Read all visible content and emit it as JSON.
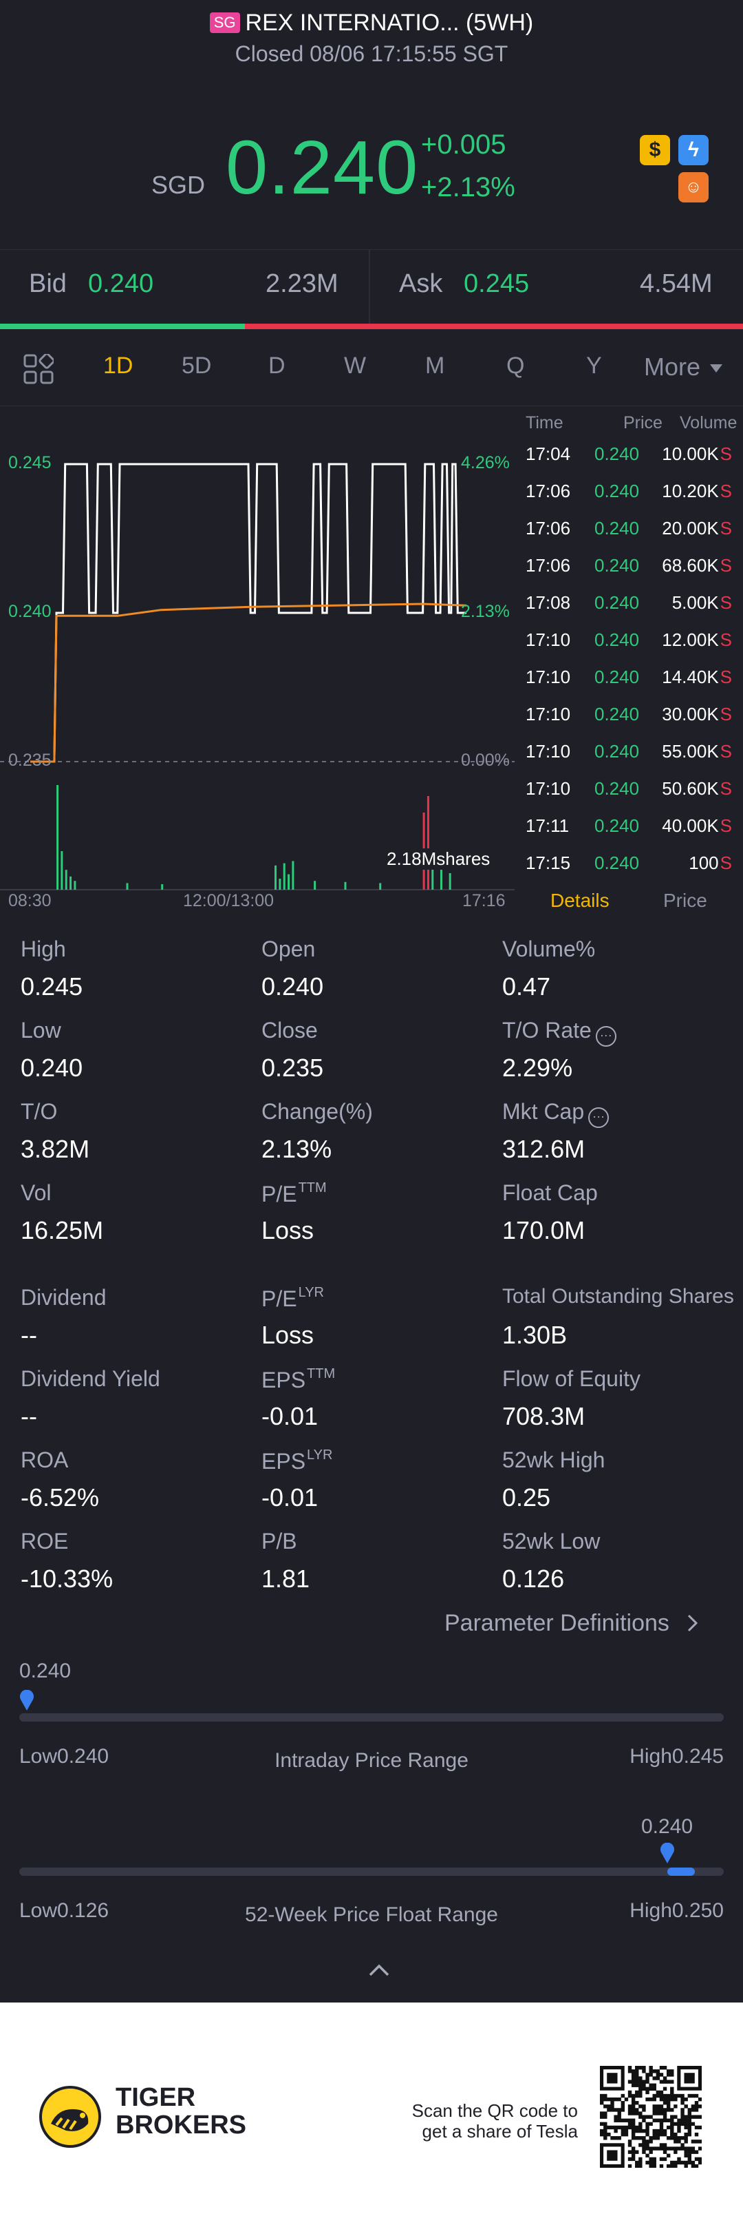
{
  "header": {
    "market_badge": "SG",
    "title": "REX INTERNATIO... (5WH)",
    "status": "Closed 08/06 17:15:55 SGT",
    "currency": "SGD",
    "price": "0.240",
    "change": "+0.005",
    "change_pct": "+2.13%",
    "icons": [
      "dollar-icon",
      "lightning-icon",
      "tiger-icon"
    ]
  },
  "bidask": {
    "bid_label": "Bid",
    "bid_price": "0.240",
    "bid_size": "2.23M",
    "ask_label": "Ask",
    "ask_price": "0.245",
    "ask_size": "4.54M"
  },
  "tabs": {
    "items": [
      "1D",
      "5D",
      "D",
      "W",
      "M",
      "Q",
      "Y",
      "More"
    ],
    "active": "1D"
  },
  "chart_data": {
    "type": "line",
    "title": "",
    "xlabel": "",
    "ylabel": "",
    "x_ticks": [
      "08:30",
      "12:00/13:00",
      "17:16"
    ],
    "y_ticks_left": [
      "0.245",
      "0.240",
      "0.235"
    ],
    "y_ticks_right": [
      "4.26%",
      "2.13%",
      "0.00%"
    ],
    "ylim": [
      0.235,
      0.245
    ],
    "prev_close": 0.235,
    "volume_label": "2.18Mshares",
    "series": [
      {
        "color": "#ffffff",
        "points": [
          [
            0.0,
            0.235
          ],
          [
            0.055,
            0.235
          ],
          [
            0.06,
            0.24
          ],
          [
            0.075,
            0.24
          ],
          [
            0.08,
            0.245
          ],
          [
            0.13,
            0.245
          ],
          [
            0.135,
            0.24
          ],
          [
            0.15,
            0.24
          ],
          [
            0.155,
            0.245
          ],
          [
            0.185,
            0.245
          ],
          [
            0.19,
            0.24
          ],
          [
            0.2,
            0.24
          ],
          [
            0.205,
            0.245
          ],
          [
            0.5,
            0.245
          ],
          [
            0.505,
            0.24
          ],
          [
            0.515,
            0.24
          ],
          [
            0.52,
            0.245
          ],
          [
            0.565,
            0.245
          ],
          [
            0.57,
            0.24
          ],
          [
            0.645,
            0.24
          ],
          [
            0.65,
            0.245
          ],
          [
            0.665,
            0.245
          ],
          [
            0.67,
            0.24
          ],
          [
            0.68,
            0.24
          ],
          [
            0.685,
            0.245
          ],
          [
            0.725,
            0.245
          ],
          [
            0.73,
            0.24
          ],
          [
            0.78,
            0.24
          ],
          [
            0.785,
            0.245
          ],
          [
            0.86,
            0.245
          ],
          [
            0.865,
            0.24
          ],
          [
            0.9,
            0.24
          ],
          [
            0.905,
            0.245
          ],
          [
            0.925,
            0.245
          ],
          [
            0.93,
            0.24
          ],
          [
            0.94,
            0.24
          ],
          [
            0.945,
            0.245
          ],
          [
            0.955,
            0.245
          ],
          [
            0.96,
            0.24
          ],
          [
            0.965,
            0.24
          ],
          [
            0.968,
            0.245
          ],
          [
            0.975,
            0.245
          ],
          [
            0.98,
            0.24
          ],
          [
            1.0,
            0.24
          ]
        ]
      },
      {
        "color": "#f08a24",
        "points": [
          [
            0.0,
            0.235
          ],
          [
            0.055,
            0.235
          ],
          [
            0.06,
            0.2399
          ],
          [
            0.2,
            0.2399
          ],
          [
            0.25,
            0.24
          ],
          [
            0.3,
            0.2401
          ],
          [
            0.5,
            0.2402
          ],
          [
            0.7,
            0.24025
          ],
          [
            0.9,
            0.2403
          ],
          [
            1.0,
            0.24025
          ]
        ]
      }
    ],
    "volume_bars": [
      {
        "x": 0.06,
        "v": 0.95,
        "c": "#2fcb7c"
      },
      {
        "x": 0.07,
        "v": 0.35,
        "c": "#2fcb7c"
      },
      {
        "x": 0.08,
        "v": 0.18,
        "c": "#2fcb7c"
      },
      {
        "x": 0.09,
        "v": 0.12,
        "c": "#2fcb7c"
      },
      {
        "x": 0.1,
        "v": 0.08,
        "c": "#2fcb7c"
      },
      {
        "x": 0.22,
        "v": 0.06,
        "c": "#2fcb7c"
      },
      {
        "x": 0.3,
        "v": 0.05,
        "c": "#2fcb7c"
      },
      {
        "x": 0.56,
        "v": 0.22,
        "c": "#2fcb7c"
      },
      {
        "x": 0.57,
        "v": 0.1,
        "c": "#2fcb7c"
      },
      {
        "x": 0.58,
        "v": 0.24,
        "c": "#2fcb7c"
      },
      {
        "x": 0.59,
        "v": 0.14,
        "c": "#2fcb7c"
      },
      {
        "x": 0.6,
        "v": 0.26,
        "c": "#2fcb7c"
      },
      {
        "x": 0.65,
        "v": 0.08,
        "c": "#2fcb7c"
      },
      {
        "x": 0.72,
        "v": 0.07,
        "c": "#2fcb7c"
      },
      {
        "x": 0.8,
        "v": 0.06,
        "c": "#2fcb7c"
      },
      {
        "x": 0.9,
        "v": 0.7,
        "c": "#e8354b"
      },
      {
        "x": 0.91,
        "v": 0.85,
        "c": "#e8354b"
      },
      {
        "x": 0.92,
        "v": 0.3,
        "c": "#2fcb7c"
      },
      {
        "x": 0.94,
        "v": 0.2,
        "c": "#2fcb7c"
      },
      {
        "x": 0.96,
        "v": 0.15,
        "c": "#2fcb7c"
      }
    ]
  },
  "trades": {
    "headers": [
      "Time",
      "Price",
      "Volume"
    ],
    "rows": [
      {
        "time": "17:04",
        "price": "0.240",
        "volume": "10.00K",
        "side": "S"
      },
      {
        "time": "17:06",
        "price": "0.240",
        "volume": "10.20K",
        "side": "S"
      },
      {
        "time": "17:06",
        "price": "0.240",
        "volume": "20.00K",
        "side": "S"
      },
      {
        "time": "17:06",
        "price": "0.240",
        "volume": "68.60K",
        "side": "S"
      },
      {
        "time": "17:08",
        "price": "0.240",
        "volume": "5.00K",
        "side": "S"
      },
      {
        "time": "17:10",
        "price": "0.240",
        "volume": "12.00K",
        "side": "S"
      },
      {
        "time": "17:10",
        "price": "0.240",
        "volume": "14.40K",
        "side": "S"
      },
      {
        "time": "17:10",
        "price": "0.240",
        "volume": "30.00K",
        "side": "S"
      },
      {
        "time": "17:10",
        "price": "0.240",
        "volume": "55.00K",
        "side": "S"
      },
      {
        "time": "17:10",
        "price": "0.240",
        "volume": "50.60K",
        "side": "S"
      },
      {
        "time": "17:11",
        "price": "0.240",
        "volume": "40.00K",
        "side": "S"
      },
      {
        "time": "17:15",
        "price": "0.240",
        "volume": "100",
        "side": "S"
      }
    ],
    "tab_details": "Details",
    "tab_price": "Price"
  },
  "stats": {
    "high_label": "High",
    "high": "0.245",
    "open_label": "Open",
    "open": "0.240",
    "volpct_label": "Volume%",
    "volpct": "0.47",
    "low_label": "Low",
    "low": "0.240",
    "close_label": "Close",
    "close": "0.235",
    "torate_label": "T/O Rate",
    "torate": "2.29%",
    "to_label": "T/O",
    "to": "3.82M",
    "changepct_label": "Change(%)",
    "changepct": "2.13%",
    "mktcap_label": "Mkt Cap",
    "mktcap": "312.6M",
    "vol_label": "Vol",
    "vol": "16.25M",
    "pe_ttm_label": "P/E",
    "pe_ttm_sup": "TTM",
    "pe_ttm": "Loss",
    "floatcap_label": "Float Cap",
    "floatcap": "170.0M",
    "dividend_label": "Dividend",
    "dividend": "--",
    "pe_lyr_label": "P/E",
    "pe_lyr_sup": "LYR",
    "pe_lyr": "Loss",
    "tos_label": "Total Outstanding Shares",
    "tos": "1.30B",
    "divyield_label": "Dividend Yield",
    "divyield": "--",
    "eps_ttm_label": "EPS",
    "eps_ttm_sup": "TTM",
    "eps_ttm": "-0.01",
    "flow_label": "Flow of Equity",
    "flow": "708.3M",
    "roa_label": "ROA",
    "roa": "-6.52%",
    "eps_lyr_label": "EPS",
    "eps_lyr_sup": "LYR",
    "eps_lyr": "-0.01",
    "wk52high_label": "52wk High",
    "wk52high": "0.25",
    "roe_label": "ROE",
    "roe": "-10.33%",
    "pb_label": "P/B",
    "pb": "1.81",
    "wk52low_label": "52wk Low",
    "wk52low": "0.126",
    "param_defs": "Parameter Definitions"
  },
  "intraday_range": {
    "current": "0.240",
    "low_text": "Low0.240",
    "title": "Intraday Price Range",
    "high_text": "High0.245",
    "position": 0.0
  },
  "week52_range": {
    "current": "0.240",
    "low_text": "Low0.126",
    "title": "52-Week Price Float Range",
    "high_text": "High0.250",
    "position": 0.92
  },
  "footer": {
    "brand_line1": "TIGER",
    "brand_line2": "BROKERS",
    "qr_line1": "Scan the QR code to",
    "qr_line2": "get a share of Tesla"
  }
}
